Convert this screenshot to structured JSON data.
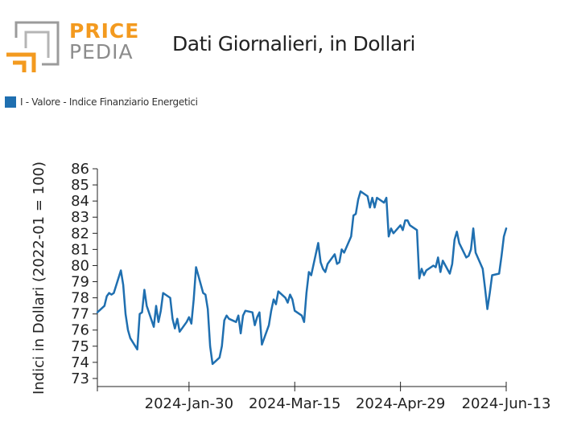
{
  "logo": {
    "line1": "PRICE",
    "line2": "PEDIA"
  },
  "header": {
    "title": "Dati Giornalieri, in Dollari"
  },
  "legend": {
    "label": "I - Valore - Indice Finanziario Energetici",
    "color": "#1f6fb0"
  },
  "chart_data": {
    "type": "line",
    "title": "Dati Giornalieri, in Dollari",
    "ylabel": "Indici in Dollari (2022-01 = 100)",
    "xlabel": "",
    "ylim": [
      72.5,
      86.2
    ],
    "yticks": [
      73,
      74,
      75,
      76,
      77,
      78,
      79,
      80,
      81,
      82,
      83,
      84,
      85,
      86
    ],
    "xlim": [
      "2023-12-22",
      "2024-06-13"
    ],
    "xticks": [
      "2023-12-22",
      "2024-01-30",
      "2024-03-15",
      "2024-04-29",
      "2024-06-13"
    ],
    "xtick_labels": [
      "",
      "2024-Jan-30",
      "2024-Mar-15",
      "2024-Apr-29",
      "2024-Jun-13"
    ],
    "grid": false,
    "legend_position": "top-left",
    "series": [
      {
        "name": "I - Valore - Indice Finanziario Energetici",
        "color": "#1f6fb0",
        "x": [
          "2023-12-22",
          "2023-12-25",
          "2023-12-26",
          "2023-12-27",
          "2023-12-28",
          "2023-12-29",
          "2024-01-01",
          "2024-01-02",
          "2024-01-03",
          "2024-01-04",
          "2024-01-05",
          "2024-01-08",
          "2024-01-09",
          "2024-01-10",
          "2024-01-11",
          "2024-01-12",
          "2024-01-15",
          "2024-01-16",
          "2024-01-17",
          "2024-01-18",
          "2024-01-19",
          "2024-01-22",
          "2024-01-23",
          "2024-01-24",
          "2024-01-25",
          "2024-01-26",
          "2024-01-29",
          "2024-01-30",
          "2024-01-31",
          "2024-02-01",
          "2024-02-02",
          "2024-02-05",
          "2024-02-06",
          "2024-02-07",
          "2024-02-08",
          "2024-02-09",
          "2024-02-12",
          "2024-02-13",
          "2024-02-14",
          "2024-02-15",
          "2024-02-16",
          "2024-02-19",
          "2024-02-20",
          "2024-02-21",
          "2024-02-22",
          "2024-02-23",
          "2024-02-26",
          "2024-02-27",
          "2024-02-28",
          "2024-02-29",
          "2024-03-01",
          "2024-03-04",
          "2024-03-05",
          "2024-03-06",
          "2024-03-07",
          "2024-03-08",
          "2024-03-11",
          "2024-03-12",
          "2024-03-13",
          "2024-03-14",
          "2024-03-15",
          "2024-03-18",
          "2024-03-19",
          "2024-03-20",
          "2024-03-21",
          "2024-03-22",
          "2024-03-25",
          "2024-03-26",
          "2024-03-27",
          "2024-03-28",
          "2024-03-29",
          "2024-04-01",
          "2024-04-02",
          "2024-04-03",
          "2024-04-04",
          "2024-04-05",
          "2024-04-08",
          "2024-04-09",
          "2024-04-10",
          "2024-04-11",
          "2024-04-12",
          "2024-04-15",
          "2024-04-16",
          "2024-04-17",
          "2024-04-18",
          "2024-04-19",
          "2024-04-22",
          "2024-04-23",
          "2024-04-24",
          "2024-04-25",
          "2024-04-26",
          "2024-04-29",
          "2024-04-30",
          "2024-05-01",
          "2024-05-02",
          "2024-05-03",
          "2024-05-06",
          "2024-05-07",
          "2024-05-08",
          "2024-05-09",
          "2024-05-10",
          "2024-05-13",
          "2024-05-14",
          "2024-05-15",
          "2024-05-16",
          "2024-05-17",
          "2024-05-20",
          "2024-05-21",
          "2024-05-22",
          "2024-05-23",
          "2024-05-24",
          "2024-05-27",
          "2024-05-28",
          "2024-05-29",
          "2024-05-30",
          "2024-05-31",
          "2024-06-03",
          "2024-06-04",
          "2024-06-05",
          "2024-06-06",
          "2024-06-07",
          "2024-06-10",
          "2024-06-11",
          "2024-06-12",
          "2024-06-13"
        ],
        "y": [
          77.1,
          77.5,
          78.1,
          78.3,
          78.2,
          78.3,
          79.7,
          78.8,
          77.0,
          76.0,
          75.5,
          74.8,
          77.0,
          77.1,
          78.5,
          77.5,
          76.2,
          77.5,
          76.5,
          77.2,
          78.3,
          78.0,
          76.7,
          76.1,
          76.7,
          75.9,
          76.5,
          76.8,
          76.4,
          77.9,
          79.9,
          78.3,
          78.2,
          77.3,
          75.0,
          73.9,
          74.3,
          75.0,
          76.6,
          76.9,
          76.7,
          76.5,
          76.9,
          75.8,
          76.9,
          77.2,
          77.1,
          76.3,
          76.8,
          77.1,
          75.1,
          76.3,
          77.2,
          77.9,
          77.6,
          78.4,
          78.0,
          77.7,
          78.2,
          77.9,
          77.2,
          76.9,
          76.5,
          78.3,
          79.6,
          79.4,
          81.4,
          80.2,
          79.8,
          79.6,
          80.1,
          80.7,
          80.1,
          80.2,
          81.0,
          80.8,
          81.8,
          83.1,
          83.2,
          84.1,
          84.6,
          84.3,
          83.6,
          84.2,
          83.6,
          84.2,
          83.9,
          84.2,
          81.8,
          82.3,
          82.0,
          82.5,
          82.2,
          82.8,
          82.8,
          82.5,
          82.2,
          79.2,
          79.8,
          79.4,
          79.7,
          80.0,
          79.9,
          80.5,
          79.6,
          80.3,
          79.5,
          80.1,
          81.6,
          82.1,
          81.4,
          80.5,
          80.6,
          81.0,
          82.3,
          80.8,
          79.8,
          78.6,
          77.3,
          78.3,
          79.4,
          79.5,
          80.6,
          81.8,
          82.3
        ]
      }
    ]
  }
}
